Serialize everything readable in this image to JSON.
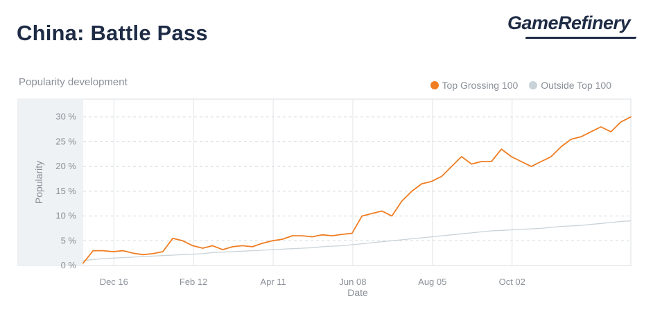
{
  "header": {
    "title": "China: Battle Pass",
    "brand": "GameRefinery"
  },
  "chart_data": {
    "type": "line",
    "subtitle": "Popularity development",
    "xlabel": "Date",
    "ylabel": "Popularity",
    "ylim": [
      0,
      30
    ],
    "y_ticks": [
      0,
      5,
      10,
      15,
      20,
      25,
      30
    ],
    "y_tick_labels": [
      "0 %",
      "5 %",
      "10 %",
      "15 %",
      "20 %",
      "25 %",
      "30 %"
    ],
    "x_tick_labels": [
      "Dec 16",
      "Feb 12",
      "Apr 11",
      "Jun 08",
      "Aug 05",
      "Oct 02"
    ],
    "x_tick_weeks": [
      3.14,
      11.28,
      19.43,
      27.57,
      35.71,
      43.86
    ],
    "x_span_weeks": 56,
    "grid": true,
    "legend_position": "top-right",
    "series": [
      {
        "name": "Top Grossing 100",
        "color": "#ef7d22",
        "values": [
          0.5,
          3,
          3,
          2.8,
          3,
          2.5,
          2.2,
          2.4,
          2.8,
          5.5,
          5,
          4,
          3.5,
          4,
          3.2,
          3.8,
          4,
          3.8,
          4.5,
          5,
          5.3,
          6,
          6,
          5.8,
          6.2,
          6,
          6.3,
          6.5,
          10,
          10.5,
          11,
          10,
          13,
          15,
          16.5,
          17,
          18,
          20,
          22,
          20.5,
          21,
          21,
          23.5,
          22,
          21,
          20,
          21,
          22,
          24,
          25.5,
          26,
          27,
          28,
          27,
          29,
          30
        ]
      },
      {
        "name": "Outside Top 100",
        "color": "#c9d3d8",
        "values": [
          1,
          1.2,
          1.4,
          1.5,
          1.6,
          1.7,
          1.8,
          1.9,
          2,
          2.1,
          2.2,
          2.3,
          2.4,
          2.6,
          2.7,
          2.8,
          2.9,
          3,
          3.1,
          3.2,
          3.3,
          3.4,
          3.5,
          3.6,
          3.8,
          3.9,
          4,
          4.2,
          4.4,
          4.6,
          4.8,
          5,
          5.2,
          5.4,
          5.6,
          5.8,
          6,
          6.2,
          6.4,
          6.6,
          6.8,
          7,
          7.1,
          7.2,
          7.3,
          7.4,
          7.5,
          7.7,
          7.9,
          8,
          8.1,
          8.3,
          8.5,
          8.7,
          8.9,
          9
        ]
      }
    ]
  }
}
